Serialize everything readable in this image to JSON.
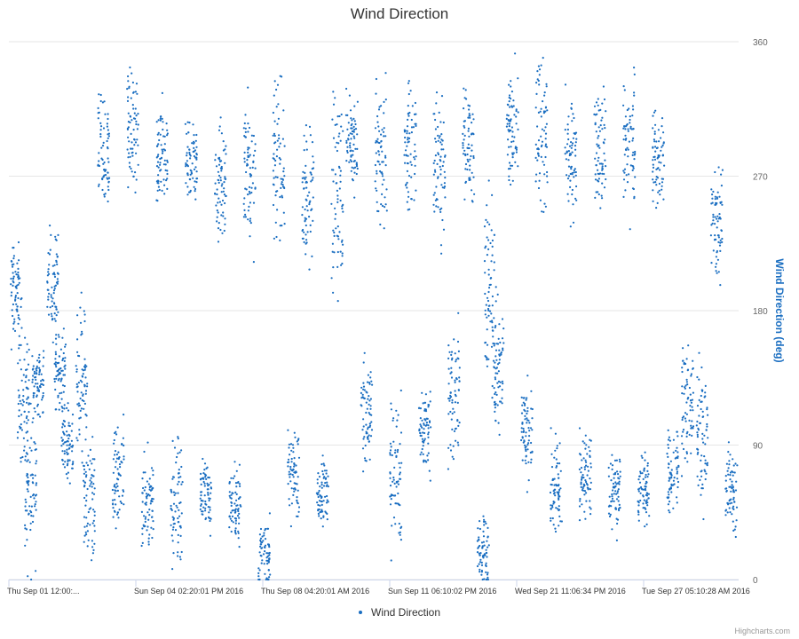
{
  "credits": "Highcharts.com",
  "colors": {
    "series": "#1a6ec1",
    "grid": "#e6e6e6",
    "axis_title": "#1a6ec1"
  },
  "chart_data": {
    "type": "scatter",
    "title": "Wind Direction",
    "ylabel": "Wind Direction (deg)",
    "ylim": [
      0,
      360
    ],
    "yticks": [
      "0",
      "90",
      "180",
      "270",
      "360"
    ],
    "xtick_labels": [
      "Thu Sep 01 12:00:...",
      "Sun Sep 04 02:20:01 PM 2016",
      "Thu Sep 08 04:20:01 AM 2016",
      "Sun Sep 11 06:10:02 PM 2016",
      "Wed Sep 21 11:06:34 PM 2016",
      "Tue Sep 27 05:10:28 AM 2016"
    ],
    "x": "sample index (0-100, chronological from Sep 01 to end of Sep 2016)",
    "grid": true,
    "legend": "bottom-center",
    "series": [
      {
        "name": "Wind Direction",
        "clusters": [
          [
            1,
            190,
            20
          ],
          [
            2,
            120,
            25
          ],
          [
            3,
            60,
            30
          ],
          [
            4,
            130,
            15
          ],
          [
            6,
            200,
            20
          ],
          [
            7,
            140,
            15
          ],
          [
            8,
            90,
            15
          ],
          [
            10,
            130,
            30
          ],
          [
            11,
            50,
            25
          ],
          [
            13,
            280,
            25
          ],
          [
            15,
            70,
            25
          ],
          [
            17,
            300,
            25
          ],
          [
            19,
            50,
            20
          ],
          [
            21,
            285,
            20
          ],
          [
            23,
            50,
            25
          ],
          [
            25,
            285,
            20
          ],
          [
            27,
            55,
            15
          ],
          [
            29,
            265,
            25
          ],
          [
            31,
            50,
            15
          ],
          [
            33,
            275,
            30
          ],
          [
            35,
            15,
            15
          ],
          [
            37,
            280,
            30
          ],
          [
            39,
            70,
            20
          ],
          [
            41,
            260,
            25
          ],
          [
            43,
            60,
            15
          ],
          [
            45,
            260,
            40
          ],
          [
            47,
            290,
            20
          ],
          [
            49,
            110,
            20
          ],
          [
            51,
            280,
            30
          ],
          [
            53,
            70,
            30
          ],
          [
            55,
            290,
            25
          ],
          [
            57,
            100,
            20
          ],
          [
            59,
            280,
            30
          ],
          [
            61,
            120,
            30
          ],
          [
            63,
            290,
            25
          ],
          [
            65,
            20,
            15
          ],
          [
            66,
            190,
            40
          ],
          [
            67,
            140,
            25
          ],
          [
            69,
            300,
            25
          ],
          [
            71,
            100,
            20
          ],
          [
            73,
            300,
            30
          ],
          [
            75,
            60,
            20
          ],
          [
            77,
            285,
            25
          ],
          [
            79,
            70,
            15
          ],
          [
            81,
            285,
            25
          ],
          [
            83,
            60,
            15
          ],
          [
            85,
            290,
            25
          ],
          [
            87,
            60,
            15
          ],
          [
            89,
            280,
            20
          ],
          [
            91,
            70,
            15
          ],
          [
            93,
            120,
            30
          ],
          [
            95,
            100,
            30
          ],
          [
            97,
            240,
            25
          ],
          [
            99,
            60,
            20
          ]
        ]
      }
    ]
  }
}
